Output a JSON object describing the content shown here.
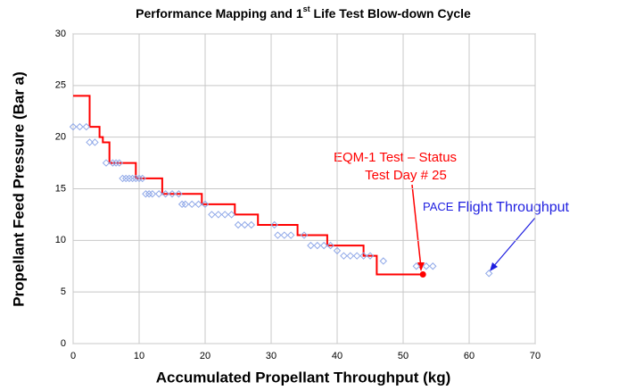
{
  "chart_data": {
    "type": "line",
    "title": [
      "Performance Mapping and 1",
      "st",
      " Life Test Blow-down Cycle"
    ],
    "xlabel": "Accumulated Propellant Throughput (kg)",
    "ylabel": "Propellant Feed Pressure (Bar a)",
    "xlim": [
      0,
      70
    ],
    "xticks": [
      0,
      10,
      20,
      30,
      40,
      50,
      60,
      70
    ],
    "ylim": [
      0,
      30
    ],
    "yticks": [
      0,
      5,
      10,
      15,
      20,
      25,
      30
    ],
    "grid": true,
    "series": [
      {
        "style": "step",
        "color": "#ff0000",
        "x": [
          0,
          2.5,
          2.5,
          4,
          4,
          4.5,
          4.5,
          5.5,
          5.5,
          9.5,
          9.5,
          13.5,
          13.5,
          19.5,
          19.5,
          24.5,
          24.5,
          28,
          28,
          34,
          34,
          38.5,
          38.5,
          44,
          44,
          46,
          46,
          53
        ],
        "values": [
          24,
          24,
          21,
          21,
          20,
          20,
          19.5,
          19.5,
          17.5,
          17.5,
          16,
          16,
          14.5,
          14.5,
          13.5,
          13.5,
          12.5,
          12.5,
          11.5,
          11.5,
          10.5,
          10.5,
          9.5,
          9.5,
          8.5,
          8.5,
          6.7,
          6.7
        ]
      },
      {
        "style": "markers",
        "color": "#8fa8e8",
        "x": [
          0,
          1,
          2,
          2.5,
          3.3,
          5,
          6,
          6.5,
          7,
          7.5,
          8,
          8.5,
          9,
          9.5,
          10,
          10.5,
          11,
          11.5,
          12,
          13,
          14,
          15,
          16,
          16.5,
          17,
          18,
          19,
          20,
          21,
          22,
          23,
          24,
          25,
          26,
          27,
          30.5,
          31,
          32,
          33,
          35,
          36,
          37,
          38,
          39,
          40,
          41,
          42,
          43,
          44,
          45,
          47,
          52,
          53.5,
          54.5,
          63
        ],
        "values": [
          21,
          21,
          21,
          19.5,
          19.5,
          17.5,
          17.5,
          17.5,
          17.5,
          16,
          16,
          16,
          16,
          16,
          16,
          16,
          14.5,
          14.5,
          14.5,
          14.5,
          14.5,
          14.5,
          14.5,
          13.5,
          13.5,
          13.5,
          13.5,
          13.5,
          12.5,
          12.5,
          12.5,
          12.5,
          11.5,
          11.5,
          11.5,
          11.5,
          10.5,
          10.5,
          10.5,
          10.5,
          9.5,
          9.5,
          9.5,
          9.5,
          9,
          8.5,
          8.5,
          8.5,
          8.5,
          8.5,
          8,
          7.5,
          7.5,
          7.5,
          6.8
        ]
      }
    ],
    "annotations": [
      {
        "lines": [
          "EQM-1 Test – Status",
          "Test Day # 25"
        ],
        "color": "#ff0000"
      },
      {
        "lines": [
          "PACE",
          " Flight Throughput"
        ],
        "color": "#1f1fe0"
      }
    ]
  }
}
